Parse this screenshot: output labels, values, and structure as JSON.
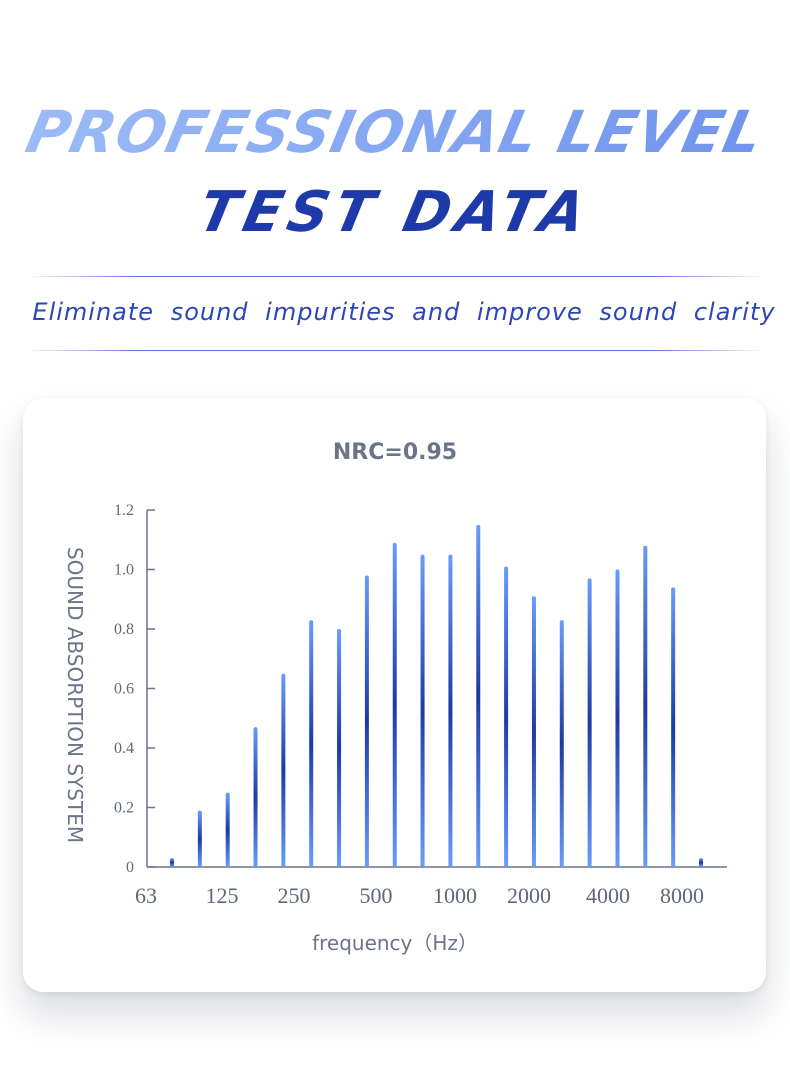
{
  "header": {
    "title_line1": "PROFESSIONAL LEVEL",
    "title_line2": "TEST  DATA",
    "tagline": "Eliminate sound impurities and improve sound clarity"
  },
  "colors": {
    "bar_dark": "#1c3aa6",
    "bar_light": "#6a9bff",
    "axis": "#6b7585"
  },
  "chart_data": {
    "type": "bar",
    "title": "NRC=0.95",
    "xlabel": "frequency（Hz）",
    "ylabel": "SOUND ABSORPTION SYSTEM",
    "ylim": [
      0,
      1.2
    ],
    "yticks": [
      {
        "value": 0,
        "label": "0"
      },
      {
        "value": 0.2,
        "label": "0.2"
      },
      {
        "value": 0.4,
        "label": "0.4"
      },
      {
        "value": 0.6,
        "label": "0.6"
      },
      {
        "value": 0.8,
        "label": "0.8"
      },
      {
        "value": 1.0,
        "label": "1.0"
      },
      {
        "value": 1.2,
        "label": "1.2"
      }
    ],
    "xtick_labels": [
      "63",
      "125",
      "250",
      "500",
      "1000",
      "2000",
      "4000",
      "8000"
    ],
    "values": [
      0.03,
      0.19,
      0.25,
      0.47,
      0.65,
      0.83,
      0.8,
      0.98,
      1.09,
      1.05,
      1.05,
      1.15,
      1.01,
      0.91,
      0.83,
      0.97,
      1.0,
      1.08,
      0.94,
      0.03
    ],
    "grid": false,
    "legend": "none"
  }
}
